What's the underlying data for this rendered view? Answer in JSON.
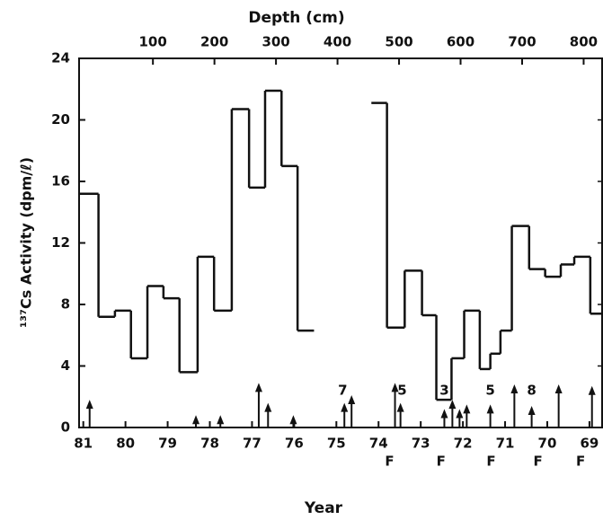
{
  "chart_data": {
    "type": "step",
    "title": "Depth (cm)",
    "xlabel": "Year",
    "ylabel": "¹³⁷Cs Activity (dpm/ℓ)",
    "xlim": [
      81.1,
      68.7
    ],
    "xticks": [
      81,
      80,
      79,
      78,
      77,
      76,
      75,
      74,
      73,
      72,
      71,
      70,
      69
    ],
    "x2lim": [
      -20,
      830
    ],
    "x2ticks": [
      100,
      200,
      300,
      400,
      500,
      600,
      700,
      800
    ],
    "ylim": [
      0,
      24
    ],
    "yticks": [
      0,
      4,
      8,
      12,
      16,
      20,
      24
    ],
    "color": "#111111",
    "edges": [
      81.11,
      80.64,
      80.25,
      79.87,
      79.48,
      79.1,
      78.72,
      78.29,
      77.9,
      77.48,
      77.07,
      76.69,
      76.3,
      75.92,
      75.53,
      74.17,
      73.8,
      73.38,
      72.97,
      72.63,
      72.27,
      71.97,
      71.6,
      71.35,
      71.11,
      70.84,
      70.43,
      70.05,
      69.68,
      69.36,
      68.98,
      68.68
    ],
    "values": [
      15.2,
      7.2,
      7.6,
      4.5,
      9.2,
      8.4,
      3.6,
      11.1,
      7.6,
      20.7,
      15.6,
      21.9,
      17.0,
      6.3,
      null,
      21.1,
      6.5,
      10.2,
      7.3,
      1.8,
      4.5,
      7.6,
      3.8,
      4.8,
      6.3,
      13.1,
      10.3,
      9.8,
      10.6,
      11.1,
      7.4
    ],
    "arrows": [
      {
        "x": 80.85,
        "height": 1.8
      },
      {
        "x": 78.33,
        "height": 0.8
      },
      {
        "x": 77.75,
        "height": 0.8
      },
      {
        "x": 76.84,
        "height": 2.9
      },
      {
        "x": 76.62,
        "height": 1.6
      },
      {
        "x": 76.02,
        "height": 0.8
      },
      {
        "x": 74.81,
        "height": 1.6
      },
      {
        "x": 74.64,
        "height": 2.1
      },
      {
        "x": 73.61,
        "height": 2.9
      },
      {
        "x": 73.48,
        "height": 1.6
      },
      {
        "x": 72.44,
        "height": 1.2
      },
      {
        "x": 72.25,
        "height": 1.8
      },
      {
        "x": 72.08,
        "height": 1.2
      },
      {
        "x": 71.91,
        "height": 1.5
      },
      {
        "x": 71.35,
        "height": 1.5
      },
      {
        "x": 70.78,
        "height": 2.8
      },
      {
        "x": 70.37,
        "height": 1.4
      },
      {
        "x": 69.73,
        "height": 2.8
      },
      {
        "x": 68.94,
        "height": 2.7
      }
    ],
    "counts": [
      {
        "text": "7",
        "x": 74.85
      },
      {
        "text": "5",
        "x": 73.44
      },
      {
        "text": "3",
        "x": 72.44
      },
      {
        "text": "5",
        "x": 71.35
      },
      {
        "text": "8",
        "x": 70.37
      }
    ],
    "f_marks": [
      {
        "text": "F",
        "x": 73.74
      },
      {
        "text": "F",
        "x": 72.52
      },
      {
        "text": "F",
        "x": 71.33
      },
      {
        "text": "F",
        "x": 70.22
      },
      {
        "text": "F",
        "x": 69.21
      }
    ]
  }
}
